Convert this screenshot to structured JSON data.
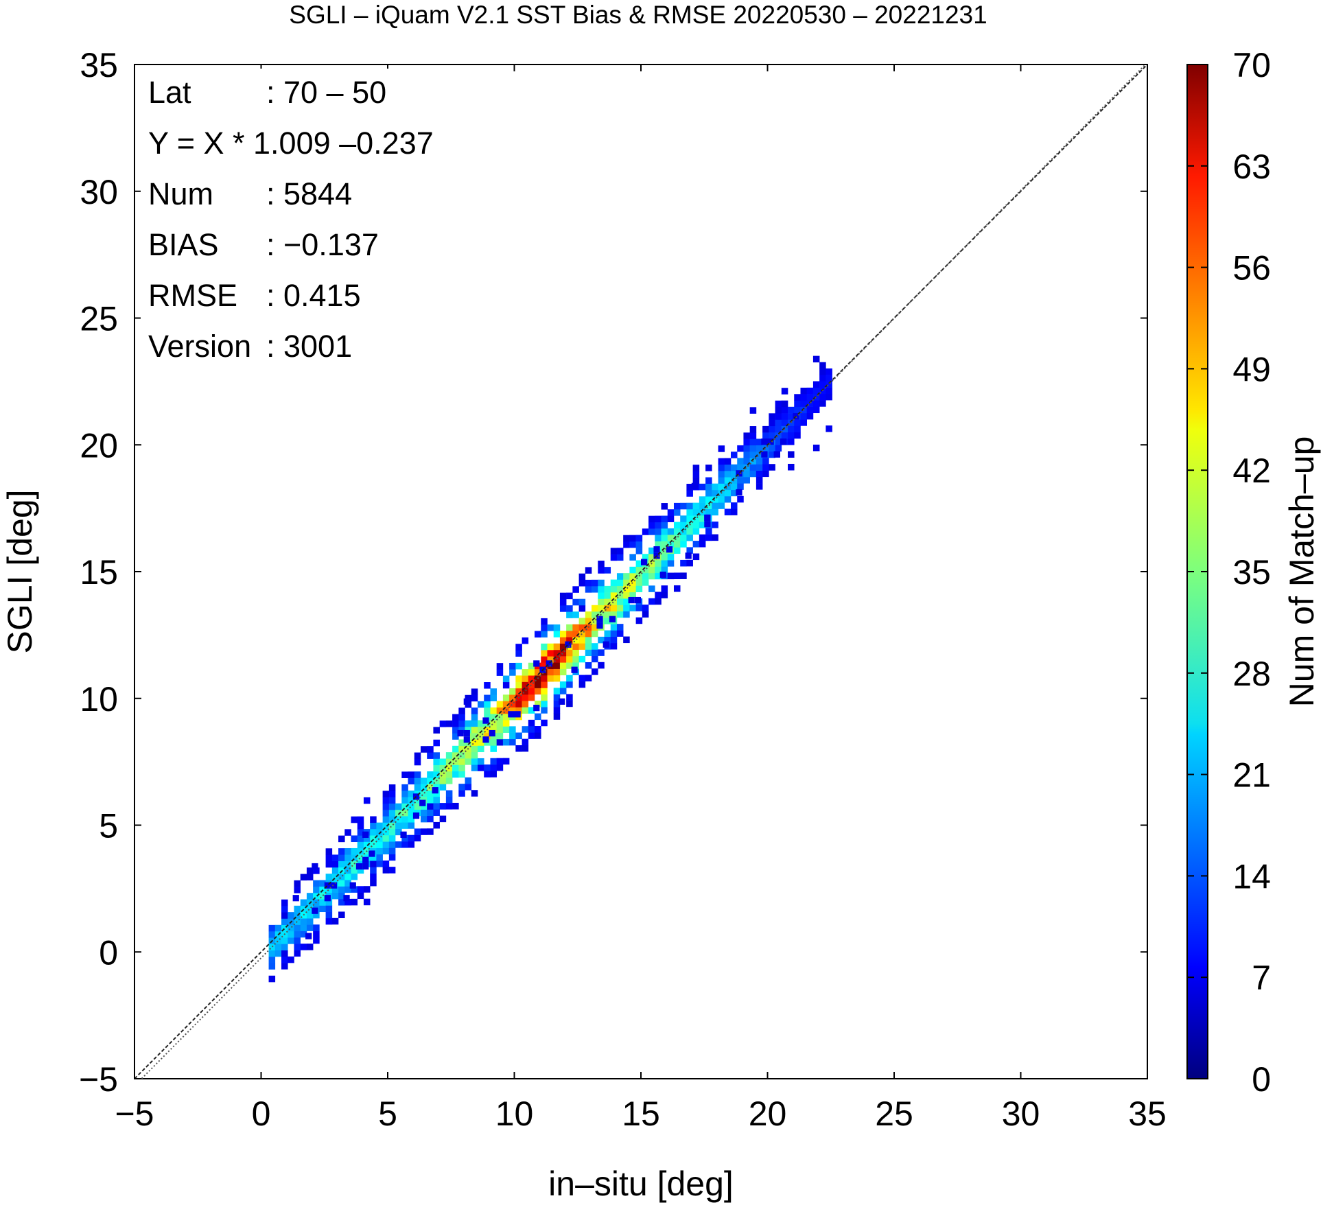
{
  "chart_data": {
    "type": "heatmap",
    "title": "SGLI – iQuam V2.1 SST Bias & RMSE 20220530 – 20221231",
    "xlabel": "in–situ [deg]",
    "ylabel": "SGLI [deg]",
    "xlim": [
      -5,
      35
    ],
    "ylim": [
      -5,
      35
    ],
    "xticks": [
      -5,
      0,
      5,
      10,
      15,
      20,
      25,
      30,
      35
    ],
    "yticks": [
      -5,
      0,
      5,
      10,
      15,
      20,
      25,
      30,
      35
    ],
    "xtick_labels": [
      "−5",
      "0",
      "5",
      "10",
      "15",
      "20",
      "25",
      "30",
      "35"
    ],
    "ytick_labels": [
      "−5",
      "0",
      "5",
      "10",
      "15",
      "20",
      "25",
      "30",
      "35"
    ],
    "colorbar": {
      "label": "Num of Match–up",
      "range": [
        0,
        70
      ],
      "ticks": [
        0,
        7,
        14,
        21,
        28,
        35,
        42,
        49,
        56,
        63,
        70
      ],
      "tick_labels": [
        "0",
        "7",
        "14",
        "21",
        "28",
        "35",
        "42",
        "49",
        "56",
        "63",
        "70"
      ],
      "colormap": "jet"
    },
    "reference_lines": [
      {
        "kind": "one-to-one",
        "slope": 1.0,
        "intercept": 0.0,
        "style": "dashed"
      },
      {
        "kind": "regression",
        "slope": 1.009,
        "intercept": -0.237,
        "style": "dotted"
      }
    ],
    "density": {
      "bin_size": 0.25,
      "x_range": [
        0.3,
        22.3
      ],
      "core_points": [
        [
          1,
          18
        ],
        [
          3,
          22
        ],
        [
          5,
          24
        ],
        [
          7,
          30
        ],
        [
          9,
          40
        ],
        [
          11,
          68
        ],
        [
          12,
          55
        ],
        [
          13,
          42
        ],
        [
          14,
          36
        ],
        [
          16,
          28
        ],
        [
          18,
          20
        ],
        [
          20,
          10
        ],
        [
          22,
          4
        ]
      ]
    },
    "stats": {
      "lat": {
        "label": "Lat",
        "value": ": 70 – 50"
      },
      "fit": {
        "label": "Y = X * 1.009 –0.237"
      },
      "num": {
        "label": "Num",
        "value": ": 5844"
      },
      "bias": {
        "label": "BIAS",
        "value": ": −0.137"
      },
      "rmse": {
        "label": "RMSE",
        "value": ": 0.415"
      },
      "version": {
        "label": "Version",
        "value": ": 3001"
      }
    },
    "grid": false
  }
}
